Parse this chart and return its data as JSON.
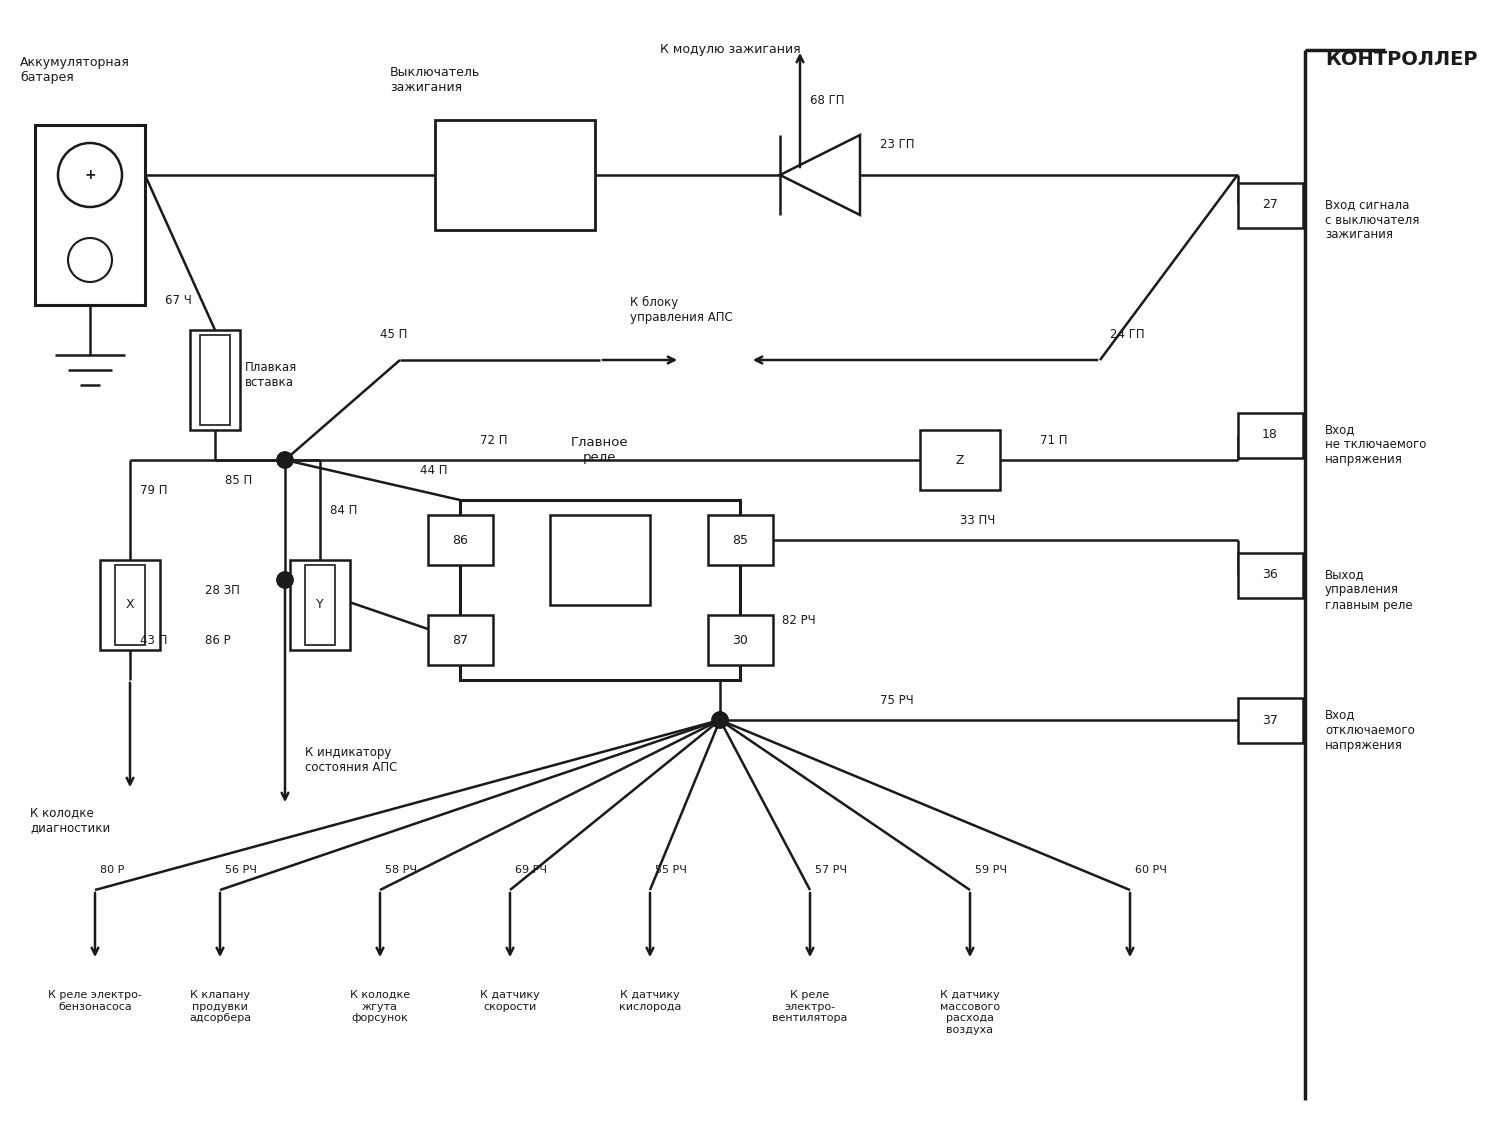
{
  "bg": "#ffffff",
  "lc": "#1a1a1a",
  "lw": 1.8,
  "texts": {
    "battery_title": "Аккумуляторная\nбатарея",
    "switch_title": "Выключатель\nзажигания",
    "ignition_module": "К модулю зажигания",
    "fuse_label": "Плавкая\nвставка",
    "main_relay_label": "Главное\nреле",
    "aps_block": "К блоку\nуправления АПС",
    "diag_block": "К колодке\nдиагностики",
    "aps_indicator": "К индикатору\nсостояния АПС",
    "controller": "КОНТРОЛЛЕР",
    "right1": "Вход сигнала\nс выключателя\nзажигания",
    "right2": "Вход\nне тключаемого\nнапряжения",
    "right3": "Выход\nуправления\nглавным реле",
    "right4": "Вход\nотключаемого\nнапряжения",
    "bot0": "К реле электро-\nбензонасоса",
    "bot1": "К клапану\nпродувки\nадсорбера",
    "bot2": "К колодке\nжгута\nфорсунок",
    "bot3": "К датчику\nскорости",
    "bot4": "К датчику\nкислорода",
    "bot5": "К реле\nэлектро-\nвентилятора",
    "bot6": "К датчику\nмассового\nрасхода\nвоздуха",
    "w67": "67 Ч",
    "w85": "85 П",
    "w79": "79 П",
    "w43": "43 П",
    "w28": "28 ЗП",
    "w84": "84 П",
    "w44": "44 П",
    "w86r": "86 Р",
    "w72": "72 П",
    "w71": "71 П",
    "w68": "68 ГП",
    "w23": "23 ГП",
    "w24": "24 ГП",
    "w45": "45 П",
    "w33": "33 ПЧ",
    "w82": "82 РЧ",
    "w75": "75 РЧ",
    "w80": "80 Р",
    "w56": "56 РЧ",
    "w58": "58 РЧ",
    "w69": "69 РЧ",
    "w55": "55 РЧ",
    "w57": "57 РЧ",
    "w59": "59 РЧ",
    "w60": "60 РЧ",
    "p27": "27",
    "p18": "18",
    "p36": "36",
    "p37": "37"
  }
}
